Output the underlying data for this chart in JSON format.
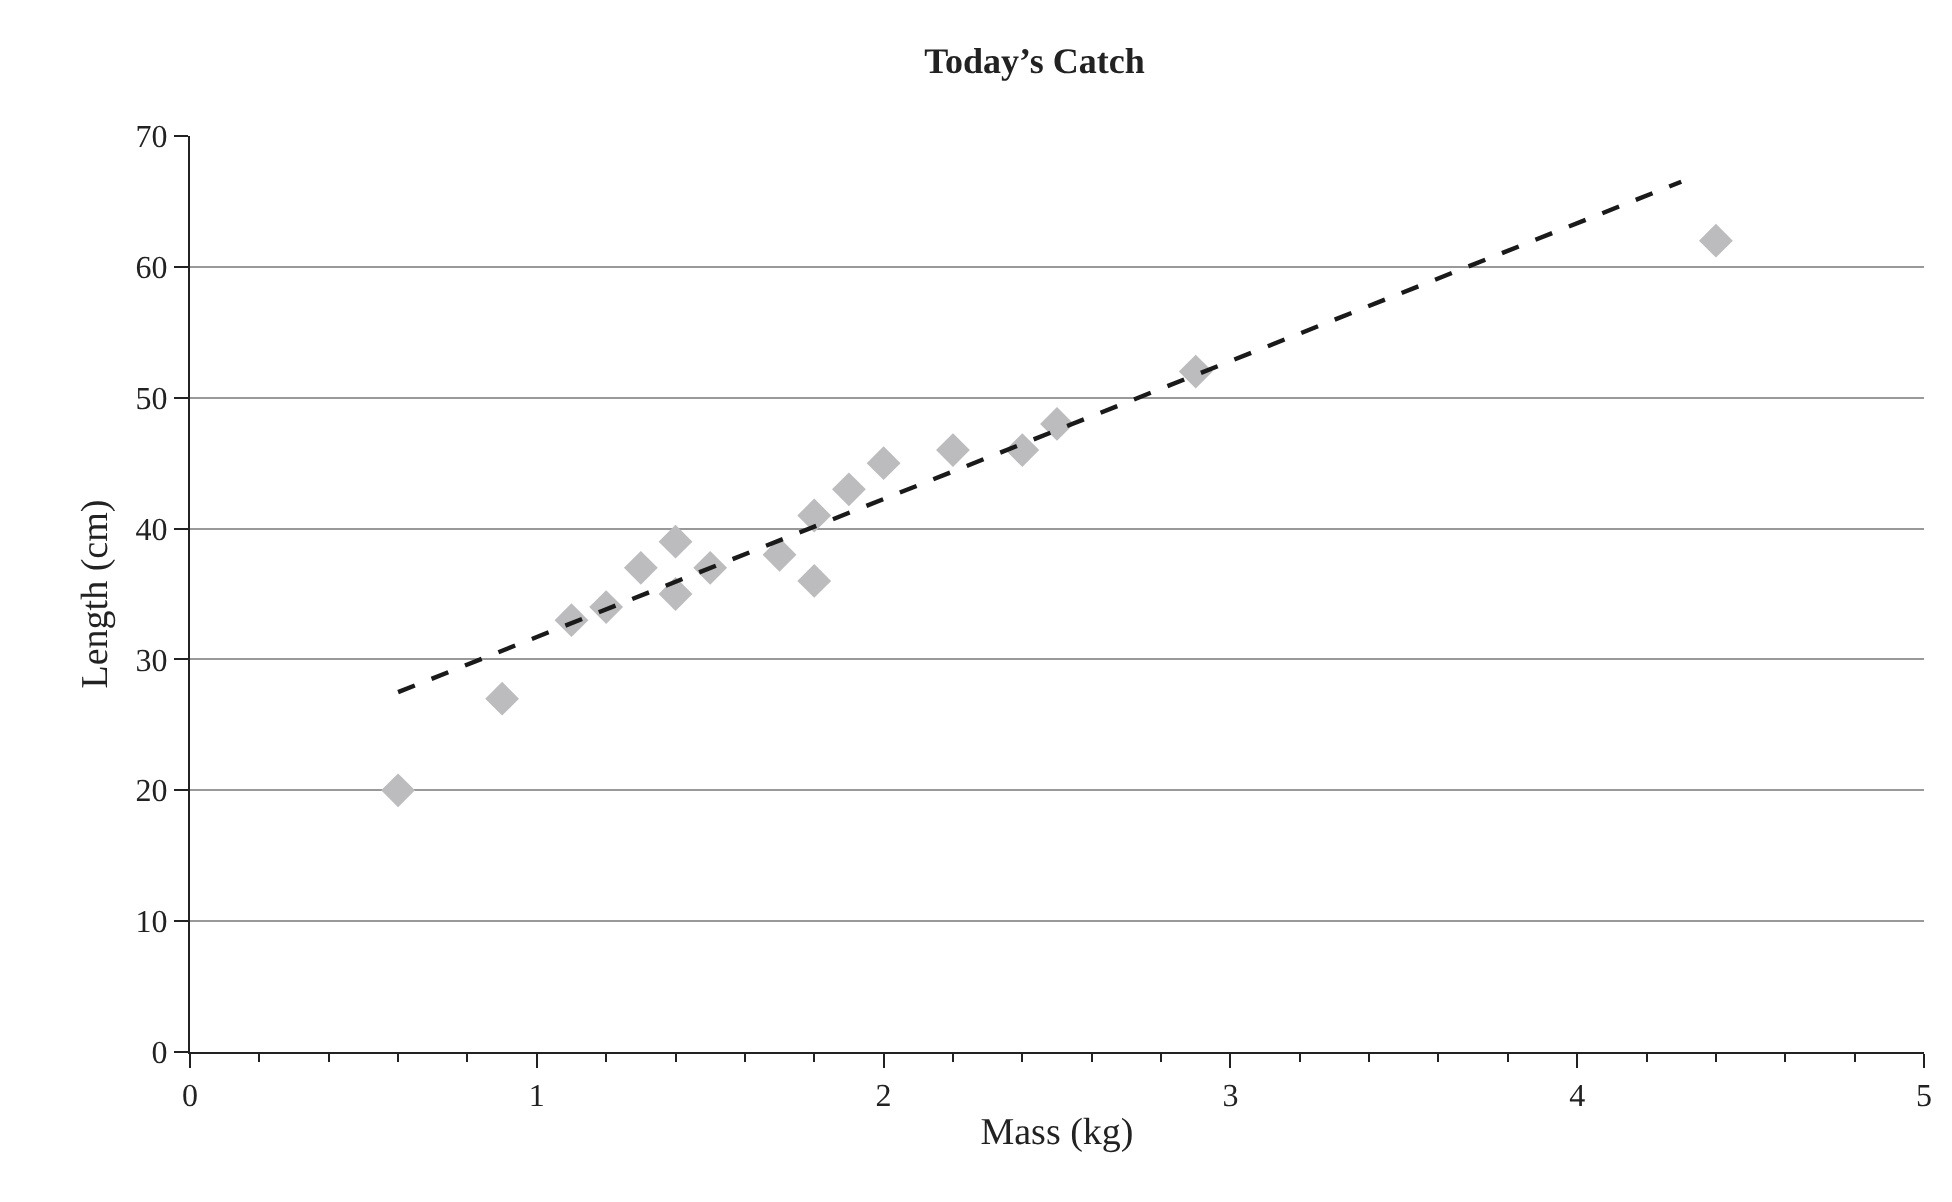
{
  "chart_data": {
    "type": "scatter",
    "title": "Today’s Catch",
    "xlabel": "Mass (kg)",
    "ylabel": "Length (cm)",
    "xlim": [
      0,
      5
    ],
    "xticks": [
      0,
      1,
      2,
      3,
      4,
      5
    ],
    "ylim": [
      0,
      70
    ],
    "yticks": [
      0,
      10,
      20,
      30,
      40,
      50,
      60,
      70
    ],
    "grid": "y",
    "marker": "diamond",
    "series": [
      {
        "color": "#bcbcbe",
        "x": [
          0.6,
          0.9,
          1.1,
          1.2,
          1.3,
          1.4,
          1.4,
          1.5,
          1.7,
          1.8,
          1.8,
          1.9,
          2.0,
          2.2,
          2.4,
          2.5,
          2.9,
          4.4
        ],
        "values": [
          20,
          27,
          33,
          34,
          37,
          39,
          35,
          37,
          38,
          41,
          36,
          43,
          45,
          46,
          46,
          48,
          52,
          62
        ]
      },
      {
        "type": "line",
        "color": "#1a1a1a",
        "line_style": "dashed",
        "marker": "none",
        "x": [
          0.6,
          4.3
        ],
        "values": [
          27.5,
          66.5
        ]
      }
    ]
  }
}
